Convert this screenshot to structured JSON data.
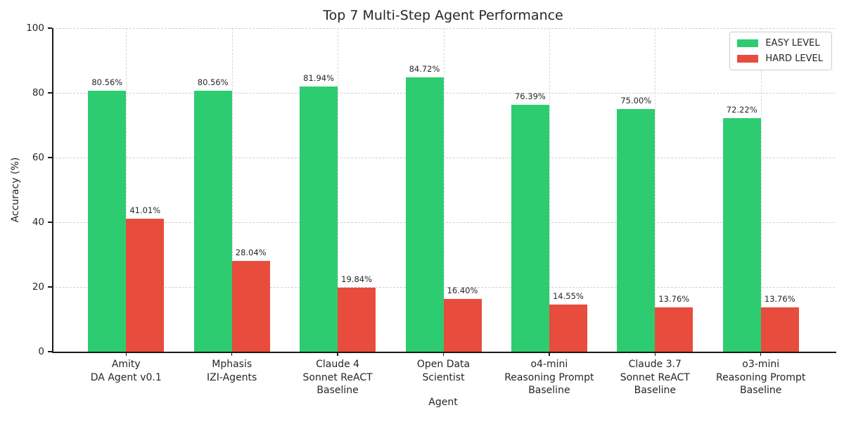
{
  "chart_data": {
    "type": "bar",
    "title": "Top 7 Multi-Step Agent Performance",
    "xlabel": "Agent",
    "ylabel": "Accuracy (%)",
    "ylim": [
      0,
      100
    ],
    "yticks": [
      0,
      20,
      40,
      60,
      80,
      100
    ],
    "grid": true,
    "grid_style": "dashed",
    "legend_position": "upper right",
    "categories": [
      [
        "Amity",
        "DA Agent v0.1"
      ],
      [
        "Mphasis",
        "IZI-Agents"
      ],
      [
        "Claude 4",
        "Sonnet ReACT",
        "Baseline"
      ],
      [
        "Open Data",
        "Scientist"
      ],
      [
        "o4-mini",
        "Reasoning Prompt",
        "Baseline"
      ],
      [
        "Claude 3.7",
        "Sonnet ReACT",
        "Baseline"
      ],
      [
        "o3-mini",
        "Reasoning Prompt",
        "Baseline"
      ]
    ],
    "series": [
      {
        "name": "EASY LEVEL",
        "color": "#2ecc71",
        "values": [
          80.56,
          80.56,
          81.94,
          84.72,
          76.39,
          75.0,
          72.22
        ],
        "labels": [
          "80.56%",
          "80.56%",
          "81.94%",
          "84.72%",
          "76.39%",
          "75.00%",
          "72.22%"
        ]
      },
      {
        "name": "HARD LEVEL",
        "color": "#e74c3c",
        "values": [
          41.01,
          28.04,
          19.84,
          16.4,
          14.55,
          13.76,
          13.76
        ],
        "labels": [
          "41.01%",
          "28.04%",
          "19.84%",
          "16.40%",
          "14.55%",
          "13.76%",
          "13.76%"
        ]
      }
    ]
  }
}
